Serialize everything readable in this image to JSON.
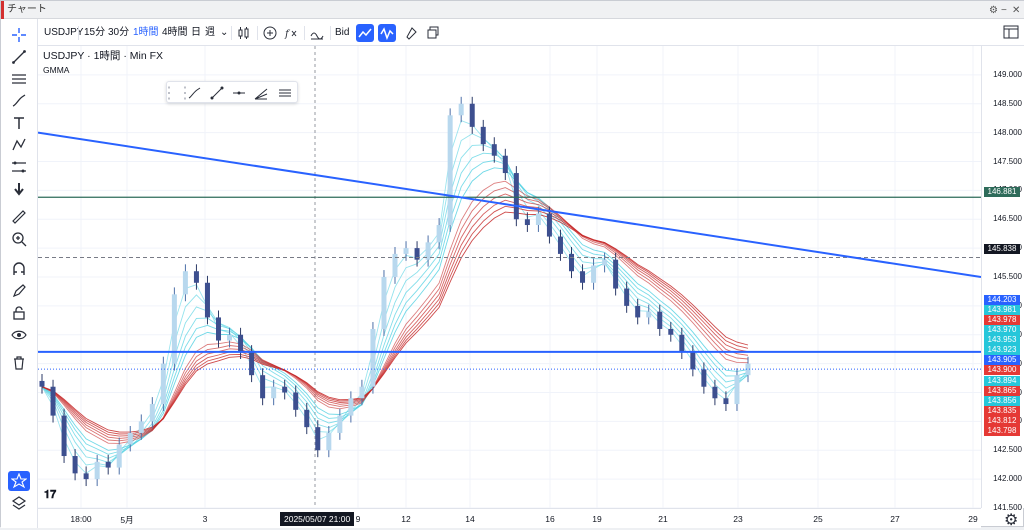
{
  "window": {
    "title": "チャート"
  },
  "toolbar": {
    "symbol": "USDJPY",
    "intervals": [
      "15分",
      "30分",
      "1時間",
      "4時間",
      "日",
      "週"
    ],
    "active_interval": "1時間",
    "price_type": "Bid"
  },
  "legend": {
    "symbol_line": "USDJPY · 1時間 · Min FX",
    "indicator": "GMMA"
  },
  "price_axis": {
    "labels": [
      "149.000",
      "148.500",
      "148.000",
      "147.500",
      "147.000",
      "146.500",
      "146.000",
      "145.500",
      "145.000",
      "144.500",
      "144.000",
      "143.500",
      "143.000",
      "142.500",
      "142.000",
      "141.500"
    ],
    "tags": [
      {
        "value": "146.881",
        "color": "#2e6b5a"
      },
      {
        "value": "145.838",
        "color": "#131722"
      },
      {
        "value": "144.203",
        "color": "#2962ff"
      },
      {
        "value": "143.981",
        "color": "#26c6da"
      },
      {
        "value": "143.978",
        "color": "#e53935"
      },
      {
        "value": "143.970",
        "color": "#26c6da"
      },
      {
        "value": "143.953",
        "color": "#26c6da"
      },
      {
        "value": "143.923",
        "color": "#26c6da"
      },
      {
        "value": "143.905",
        "color": "#2962ff"
      },
      {
        "value": "143.900",
        "color": "#e53935"
      },
      {
        "value": "143.894",
        "color": "#26c6da"
      },
      {
        "value": "143.865",
        "color": "#e53935"
      },
      {
        "value": "143.856",
        "color": "#26c6da"
      },
      {
        "value": "143.835",
        "color": "#e53935"
      },
      {
        "value": "143.812",
        "color": "#e53935"
      },
      {
        "value": "143.798",
        "color": "#e53935"
      }
    ]
  },
  "time_axis": {
    "labels": [
      "18:00",
      "5月",
      "3",
      "9",
      "12",
      "14",
      "16",
      "19",
      "21",
      "23",
      "25",
      "27",
      "29"
    ],
    "crosshair_label": "2025/05/07  21:00"
  },
  "chart_data": {
    "type": "candlestick",
    "y_range": [
      141.5,
      149.5
    ],
    "horizontal_lines": [
      {
        "price": 146.881,
        "color": "#2e6b5a"
      },
      {
        "price": 145.838,
        "color": "#787b86",
        "dashed": true
      },
      {
        "price": 144.203,
        "color": "#2962ff"
      },
      {
        "price": 143.905,
        "color": "#2962ff",
        "dotted": true
      }
    ],
    "trendline": {
      "from_price": 148.0,
      "to_price": 145.5,
      "color": "#2962ff"
    },
    "series": [
      {
        "name": "close",
        "values": [
          143.6,
          143.1,
          142.4,
          142.1,
          142.0,
          142.3,
          142.2,
          142.6,
          142.8,
          143.0,
          143.3,
          144.0,
          145.2,
          145.6,
          145.4,
          144.8,
          144.4,
          144.5,
          144.2,
          143.8,
          143.4,
          143.6,
          143.5,
          143.2,
          142.9,
          142.5,
          142.8,
          143.1,
          143.4,
          143.6,
          144.6,
          145.5,
          145.9,
          146.0,
          145.8,
          146.1,
          146.4,
          148.3,
          148.5,
          148.1,
          147.8,
          147.6,
          147.3,
          146.5,
          146.4,
          146.6,
          146.2,
          145.9,
          145.6,
          145.4,
          145.7,
          145.8,
          145.3,
          145.0,
          144.8,
          144.9,
          144.6,
          144.5,
          144.2,
          143.9,
          143.6,
          143.4,
          143.3,
          143.8,
          144.0
        ]
      }
    ]
  },
  "colors": {
    "accent": "#2962ff",
    "up": "#26c6da",
    "down": "#e53935",
    "ema_short": "#4dd0e1",
    "ema_long": "#c62828"
  }
}
